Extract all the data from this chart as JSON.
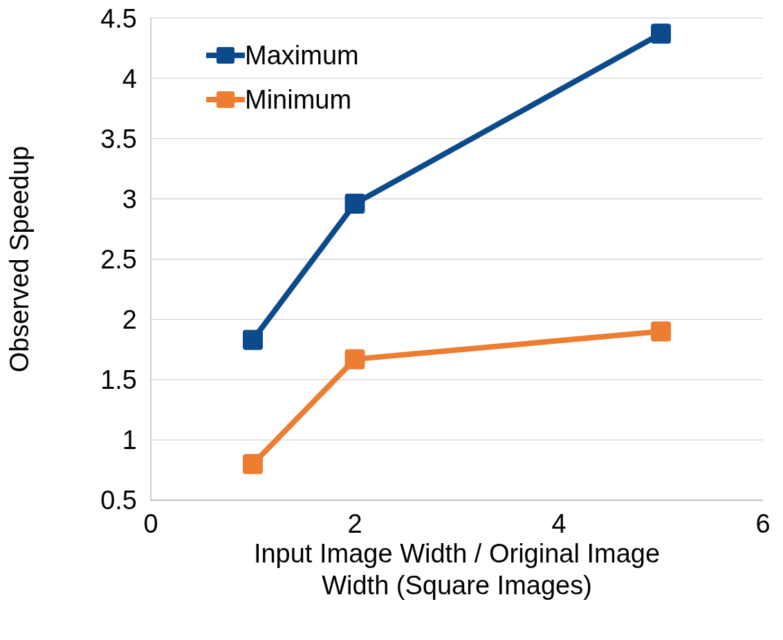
{
  "chart_data": {
    "type": "line",
    "xlabel": "Input Image Width / Original Image Width (Square Images)",
    "ylabel": "Observed Speedup",
    "x": [
      1,
      2,
      5
    ],
    "series": [
      {
        "name": "Maximum",
        "color": "#0b4a8b",
        "values": [
          1.83,
          2.96,
          4.37
        ]
      },
      {
        "name": "Minimum",
        "color": "#ed7d31",
        "values": [
          0.8,
          1.67,
          1.9
        ]
      }
    ],
    "xlim": [
      0,
      6
    ],
    "xticks": [
      0,
      2,
      4,
      6
    ],
    "ylim": [
      0.5,
      4.5
    ],
    "yticks": [
      0.5,
      1,
      1.5,
      2,
      2.5,
      3,
      3.5,
      4,
      4.5
    ],
    "grid": "y",
    "legend": "top left",
    "marker": "square",
    "line_style": "solid"
  }
}
